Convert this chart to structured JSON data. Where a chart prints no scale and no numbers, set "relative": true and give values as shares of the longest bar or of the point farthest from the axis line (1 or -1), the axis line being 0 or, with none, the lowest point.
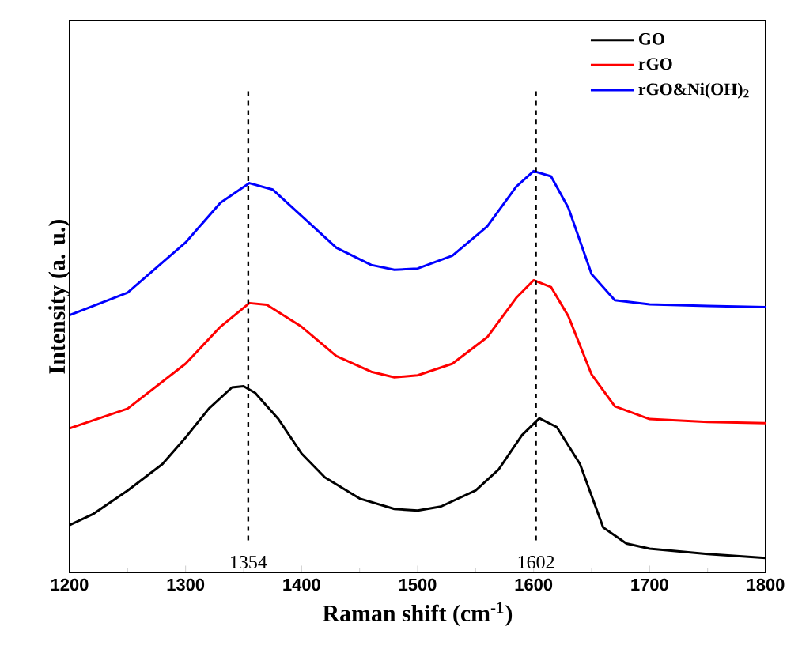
{
  "chart_data": {
    "type": "line",
    "relative": true,
    "xlabel": "Raman shift (cm$^{-1}$)",
    "ylabel": "Intensity (a. u.)",
    "xlim": [
      1200,
      1800
    ],
    "xticks": [
      1200,
      1300,
      1400,
      1500,
      1600,
      1700,
      1800
    ],
    "tick_labels": "x",
    "legend": "top right",
    "marker": "none",
    "line_style": "solid",
    "ref_lines": [
      {
        "axis": "x",
        "value": 1354,
        "label": "1354",
        "line_style": "dashed",
        "color": "#000000"
      },
      {
        "axis": "x",
        "value": 1602,
        "label": "1602",
        "line_style": "dashed",
        "color": "#000000"
      }
    ],
    "series": [
      {
        "name": "GO",
        "color": "#000000",
        "x": [
          1200,
          1220,
          1250,
          1280,
          1300,
          1320,
          1340,
          1350,
          1360,
          1380,
          1400,
          1420,
          1450,
          1480,
          1500,
          1520,
          1550,
          1570,
          1590,
          1605,
          1620,
          1640,
          1660,
          1680,
          1700,
          1750,
          1800
        ],
        "values": [
          0.118,
          0.145,
          0.204,
          0.27,
          0.336,
          0.408,
          0.461,
          0.464,
          0.447,
          0.382,
          0.296,
          0.237,
          0.184,
          0.158,
          0.154,
          0.164,
          0.204,
          0.257,
          0.342,
          0.384,
          0.362,
          0.27,
          0.112,
          0.072,
          0.059,
          0.046,
          0.036
        ]
      },
      {
        "name": "rGO",
        "color": "#ff0000",
        "x": [
          1200,
          1250,
          1300,
          1330,
          1355,
          1370,
          1400,
          1430,
          1460,
          1480,
          1500,
          1530,
          1560,
          1585,
          1600,
          1615,
          1630,
          1650,
          1670,
          1700,
          1750,
          1800
        ],
        "values": [
          0.359,
          0.408,
          0.52,
          0.612,
          0.671,
          0.667,
          0.612,
          0.539,
          0.5,
          0.486,
          0.491,
          0.52,
          0.586,
          0.684,
          0.728,
          0.711,
          0.638,
          0.493,
          0.414,
          0.382,
          0.375,
          0.372
        ]
      },
      {
        "name": "rGO&Ni(OH)$_{2}$",
        "color": "#0000ff",
        "x": [
          1200,
          1250,
          1300,
          1330,
          1355,
          1375,
          1400,
          1430,
          1460,
          1480,
          1500,
          1530,
          1560,
          1585,
          1600,
          1615,
          1630,
          1650,
          1670,
          1700,
          1750,
          1800
        ],
        "values": [
          0.641,
          0.697,
          0.822,
          0.921,
          0.97,
          0.954,
          0.888,
          0.809,
          0.766,
          0.754,
          0.757,
          0.789,
          0.862,
          0.961,
          1.0,
          0.987,
          0.908,
          0.743,
          0.678,
          0.668,
          0.664,
          0.661
        ]
      }
    ]
  }
}
